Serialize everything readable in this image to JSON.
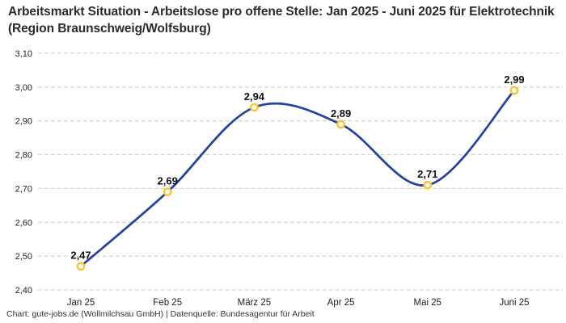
{
  "header": {
    "title": "Arbeitsmarkt Situation - Arbeitslose pro offene Stelle: Jan 2025 - Juni 2025 für Elektrotechnik (Region Braunschweig/Wolfsburg)"
  },
  "chart_data": {
    "type": "line",
    "title": "Arbeitsmarkt Situation - Arbeitslose pro offene Stelle: Jan 2025 - Juni 2025 für Elektrotechnik (Region Braunschweig/Wolfsburg)",
    "categories": [
      "Jan 25",
      "Feb 25",
      "März 25",
      "Apr 25",
      "Mai 25",
      "Juni 25"
    ],
    "values": [
      2.47,
      2.69,
      2.94,
      2.89,
      2.71,
      2.99
    ],
    "value_labels": [
      "2,47",
      "2,69",
      "2,94",
      "2,89",
      "2,71",
      "2,99"
    ],
    "y_ticks": [
      "2,40",
      "2,50",
      "2,60",
      "2,70",
      "2,80",
      "2,90",
      "3,00",
      "3,10"
    ],
    "y_tick_values": [
      2.4,
      2.5,
      2.6,
      2.7,
      2.8,
      2.9,
      3.0,
      3.1
    ],
    "ylim": [
      2.4,
      3.1
    ],
    "xlabel": "",
    "ylabel": "",
    "legend": "none",
    "grid": "horizontal-dashed",
    "line_style": "smooth-spline",
    "marker_style": "open-circle",
    "colors": {
      "line": "#2342a3",
      "marker_ring": "#fcc42f",
      "marker_fill": "#ffffff",
      "grid": "#cccccc",
      "tick_label": "#222222",
      "value_label": "#111111",
      "title": "#2b2b2b"
    }
  },
  "footer": {
    "credit": "Chart: gute-jobs.de (Wollmilchsau GmbH) | Datenquelle: Bundesagentur für Arbeit"
  }
}
